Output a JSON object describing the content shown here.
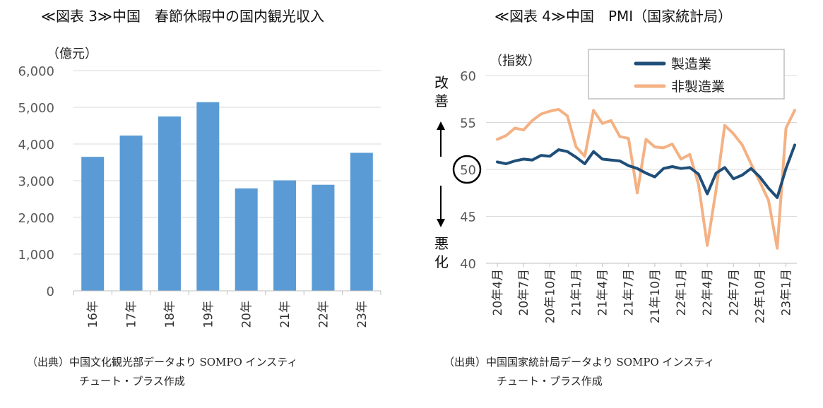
{
  "left": {
    "title": "≪図表 3≫中国　春節休暇中の国内観光収入",
    "unit": "（億元）",
    "source_line1": "（出典）中国文化観光部データより SOMPO インスティ",
    "source_line2": "チュート・プラス作成"
  },
  "right": {
    "title": "≪図表 4≫中国　PMI（国家統計局）",
    "unit": "（指数）",
    "improve_label": "改善",
    "worsen_label": "悪化",
    "source_line1": "（出典）中国国家統計局データより SOMPO インスティ",
    "source_line2": "チュート・プラス作成"
  },
  "chart_data": [
    {
      "type": "bar",
      "title": "≪図表 3≫中国　春節休暇中の国内観光収入",
      "ylabel": "（億元）",
      "categories": [
        "16年",
        "17年",
        "18年",
        "19年",
        "20年",
        "21年",
        "22年",
        "23年"
      ],
      "values": [
        3650,
        4230,
        4750,
        5140,
        2790,
        3010,
        2890,
        3760
      ],
      "ylim": [
        0,
        6000
      ],
      "yticks": [
        "0",
        "1,000",
        "2,000",
        "3,000",
        "4,000",
        "5,000",
        "6,000"
      ],
      "color": "#5b9bd5",
      "grid": true
    },
    {
      "type": "line",
      "title": "≪図表 4≫中国　PMI（国家統計局）",
      "ylabel": "（指数）",
      "x": [
        "20年4月",
        "20年5月",
        "20年6月",
        "20年7月",
        "20年8月",
        "20年9月",
        "20年10月",
        "20年11月",
        "20年12月",
        "21年1月",
        "21年2月",
        "21年3月",
        "21年4月",
        "21年5月",
        "21年6月",
        "21年7月",
        "21年8月",
        "21年9月",
        "21年10月",
        "21年11月",
        "21年12月",
        "22年1月",
        "22年2月",
        "22年3月",
        "22年4月",
        "22年5月",
        "22年6月",
        "22年7月",
        "22年8月",
        "22年9月",
        "22年10月",
        "22年11月",
        "22年12月",
        "23年1月",
        "23年2月"
      ],
      "xtick_labels": [
        "20年4月",
        "20年7月",
        "20年10月",
        "21年1月",
        "21年4月",
        "21年7月",
        "21年10月",
        "22年1月",
        "22年4月",
        "22年7月",
        "22年10月",
        "23年1月"
      ],
      "ylim": [
        40,
        60
      ],
      "yticks": [
        "40",
        "45",
        "50",
        "55",
        "60"
      ],
      "highlight_tick": "50",
      "legend_position": "top-right",
      "grid": true,
      "series": [
        {
          "name": "製造業",
          "color": "#1f4e79",
          "values": [
            50.8,
            50.6,
            50.9,
            51.1,
            51.0,
            51.5,
            51.4,
            52.1,
            51.9,
            51.3,
            50.6,
            51.9,
            51.1,
            51.0,
            50.9,
            50.4,
            50.1,
            49.6,
            49.2,
            50.1,
            50.3,
            50.1,
            50.2,
            49.5,
            47.4,
            49.6,
            50.2,
            49.0,
            49.4,
            50.1,
            49.2,
            48.0,
            47.0,
            50.1,
            52.6
          ]
        },
        {
          "name": "非製造業",
          "color": "#f4b183",
          "values": [
            53.2,
            53.6,
            54.4,
            54.2,
            55.2,
            55.9,
            56.2,
            56.4,
            55.7,
            52.4,
            51.4,
            56.3,
            54.9,
            55.2,
            53.5,
            53.3,
            47.5,
            53.2,
            52.4,
            52.3,
            52.7,
            51.1,
            51.6,
            48.4,
            41.9,
            47.8,
            54.7,
            53.8,
            52.6,
            50.6,
            48.7,
            46.7,
            41.6,
            54.4,
            56.3
          ]
        }
      ]
    }
  ]
}
